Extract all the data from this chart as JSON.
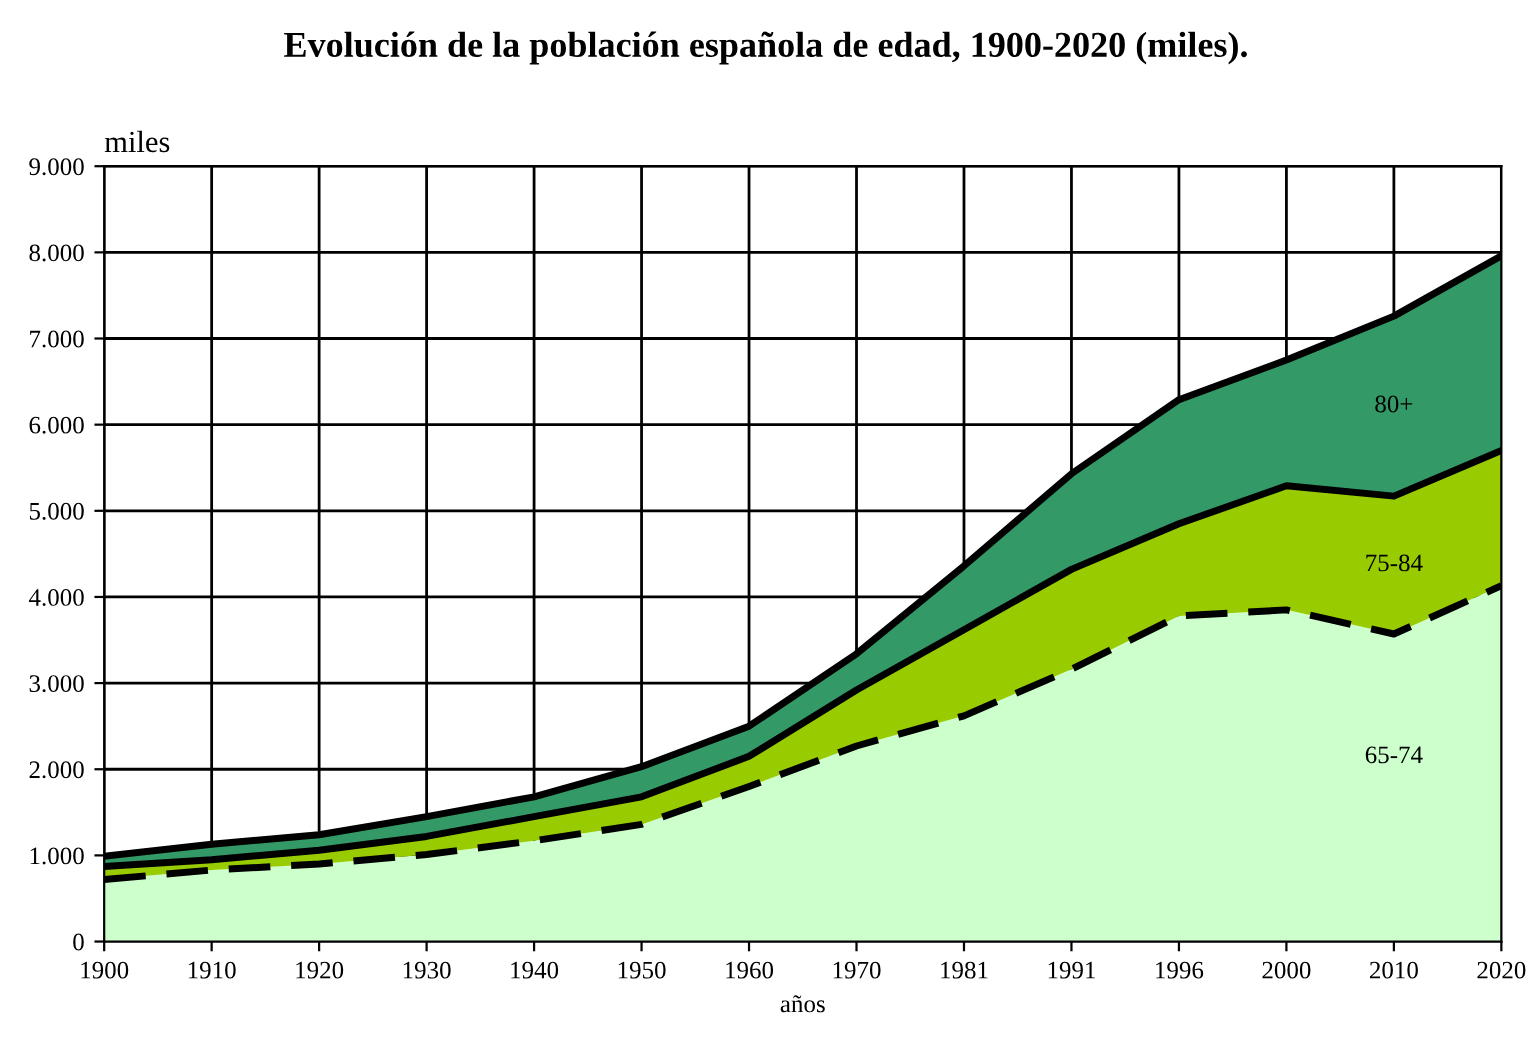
{
  "chart_data": {
    "type": "area",
    "stacked": true,
    "title": "Evolución de la población española de edad, 1900-2020 (miles).",
    "xlabel": "años",
    "ylabel": "miles",
    "categories": [
      "1900",
      "1910",
      "1920",
      "1930",
      "1940",
      "1950",
      "1960",
      "1970",
      "1981",
      "1991",
      "1996",
      "2000",
      "2010",
      "2020"
    ],
    "series": [
      {
        "name": "65-74",
        "color": "#ccffcc",
        "line_style": "dashed",
        "values": [
          720,
          830,
          900,
          1010,
          1170,
          1360,
          1800,
          2270,
          2620,
          3160,
          3780,
          3850,
          3570,
          4130
        ]
      },
      {
        "name": "75-84",
        "color": "#99cc00",
        "line_style": "solid",
        "values": [
          150,
          120,
          160,
          210,
          280,
          320,
          350,
          650,
          1000,
          1160,
          1070,
          1440,
          1600,
          1570
        ]
      },
      {
        "name": "80+",
        "color": "#339966",
        "line_style": "solid",
        "values": [
          120,
          180,
          180,
          230,
          230,
          350,
          350,
          420,
          740,
          1110,
          1440,
          1460,
          2090,
          2260
        ]
      }
    ],
    "ylim": [
      0,
      9000
    ],
    "yticks": [
      0,
      {
        "value": 1000,
        "label": "1.000"
      },
      {
        "value": 2000,
        "label": "2.000"
      },
      {
        "value": 3000,
        "label": "3.000"
      },
      {
        "value": 4000,
        "label": "4.000"
      },
      {
        "value": 5000,
        "label": "5.000"
      },
      {
        "value": 6000,
        "label": "6.000"
      },
      {
        "value": 7000,
        "label": "7.000"
      },
      {
        "value": 8000,
        "label": "8.000"
      },
      {
        "value": 9000,
        "label": "9.000"
      }
    ],
    "grid": true
  }
}
